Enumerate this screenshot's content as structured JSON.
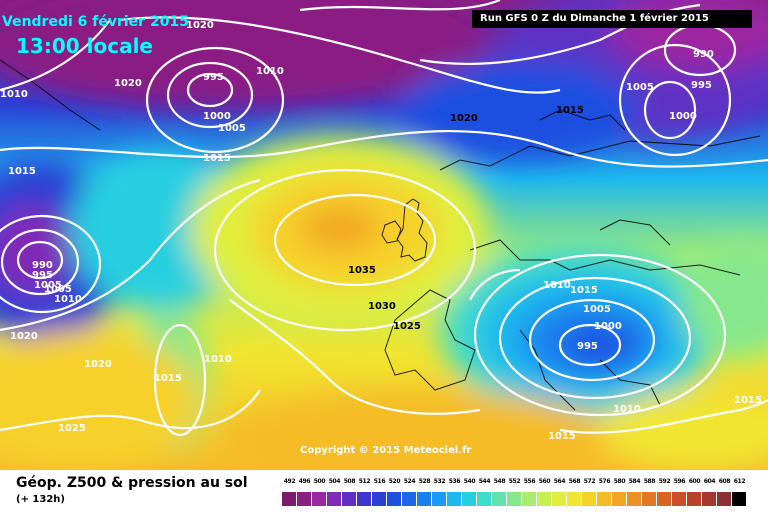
{
  "header": {
    "date": "Vendredi 6 février 2015",
    "time": "13:00 locale",
    "run": "Run GFS 0 Z du Dimanche 1 février 2015"
  },
  "footer": {
    "title": "Géop. Z500 & pression au sol",
    "subtitle": "(+ 132h)",
    "copyright": "Copyright © 2015 Meteociel.fr"
  },
  "colorbar": {
    "ticks": [
      "492",
      "496",
      "500",
      "504",
      "508",
      "512",
      "516",
      "520",
      "524",
      "528",
      "532",
      "536",
      "540",
      "544",
      "548",
      "552",
      "556",
      "560",
      "564",
      "568",
      "572",
      "576",
      "580",
      "584",
      "588",
      "592",
      "596",
      "600",
      "604",
      "608",
      "612"
    ],
    "colors": [
      "#7d1a6d",
      "#8a1f84",
      "#9b27a0",
      "#7f2bb6",
      "#5e30c4",
      "#3f36cf",
      "#2a3fd6",
      "#1f4fe0",
      "#1d66e8",
      "#1b80ef",
      "#1b9cf2",
      "#1db8ee",
      "#25cfe0",
      "#3fdccb",
      "#62e3ad",
      "#86e88d",
      "#a7ec6e",
      "#c6ef52",
      "#e0ef3c",
      "#f1e530",
      "#f6d12a",
      "#f5bc27",
      "#f2a525",
      "#ec8f24",
      "#e37824",
      "#d86325",
      "#c95029",
      "#b9422c",
      "#a4382f",
      "#8c3133",
      "#000000"
    ]
  },
  "isobars": [
    {
      "text": "1020",
      "kind": "white"
    },
    {
      "text": "1010",
      "kind": "white"
    },
    {
      "text": "1020",
      "kind": "white"
    },
    {
      "text": "995",
      "kind": "white"
    },
    {
      "text": "1010",
      "kind": "white"
    },
    {
      "text": "1000",
      "kind": "white"
    },
    {
      "text": "1005",
      "kind": "white"
    },
    {
      "text": "1015",
      "kind": "white"
    },
    {
      "text": "1015",
      "kind": "white"
    },
    {
      "text": "990",
      "kind": "white"
    },
    {
      "text": "995",
      "kind": "white"
    },
    {
      "text": "1005",
      "kind": "white"
    },
    {
      "text": "1005",
      "kind": "white"
    },
    {
      "text": "1010",
      "kind": "white"
    },
    {
      "text": "1020",
      "kind": "white"
    },
    {
      "text": "1020",
      "kind": "white"
    },
    {
      "text": "1010",
      "kind": "white"
    },
    {
      "text": "1015",
      "kind": "white"
    },
    {
      "text": "1025",
      "kind": "white"
    },
    {
      "text": "1035",
      "kind": "dark"
    },
    {
      "text": "1030",
      "kind": "dark"
    },
    {
      "text": "1025",
      "kind": "dark"
    },
    {
      "text": "1020",
      "kind": "dark"
    },
    {
      "text": "1015",
      "kind": "dark"
    },
    {
      "text": "1005",
      "kind": "white"
    },
    {
      "text": "1000",
      "kind": "white"
    },
    {
      "text": "995",
      "kind": "white"
    },
    {
      "text": "1010",
      "kind": "white"
    },
    {
      "text": "1015",
      "kind": "white"
    },
    {
      "text": "1015",
      "kind": "white"
    },
    {
      "text": "1015",
      "kind": "white"
    },
    {
      "text": "1010",
      "kind": "white"
    },
    {
      "text": "1005",
      "kind": "white"
    },
    {
      "text": "1000",
      "kind": "white"
    },
    {
      "text": "990",
      "kind": "white"
    },
    {
      "text": "995",
      "kind": "white"
    }
  ]
}
